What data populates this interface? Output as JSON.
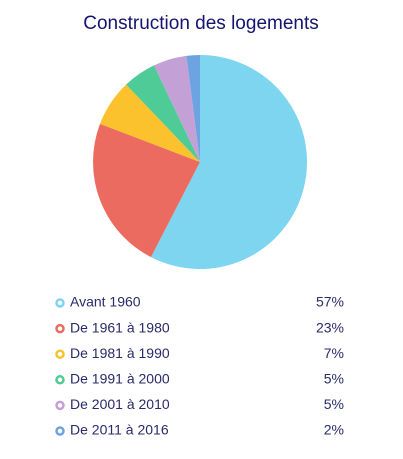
{
  "chart_data": {
    "type": "pie",
    "title": "Construction des logements",
    "categories": [
      "Avant 1960",
      "De 1961 à 1980",
      "De 1981 à 1990",
      "De 1991 à 2000",
      "De 2001 à 2010",
      "De 2011 à 2016"
    ],
    "values": [
      57,
      23,
      7,
      5,
      5,
      2
    ],
    "value_labels": [
      "57%",
      "23%",
      "7%",
      "5%",
      "5%",
      "2%"
    ],
    "colors": [
      "#7dd5f0",
      "#ec6b60",
      "#fcc22e",
      "#4fcb97",
      "#c3a0d6",
      "#6ea3e2"
    ]
  }
}
